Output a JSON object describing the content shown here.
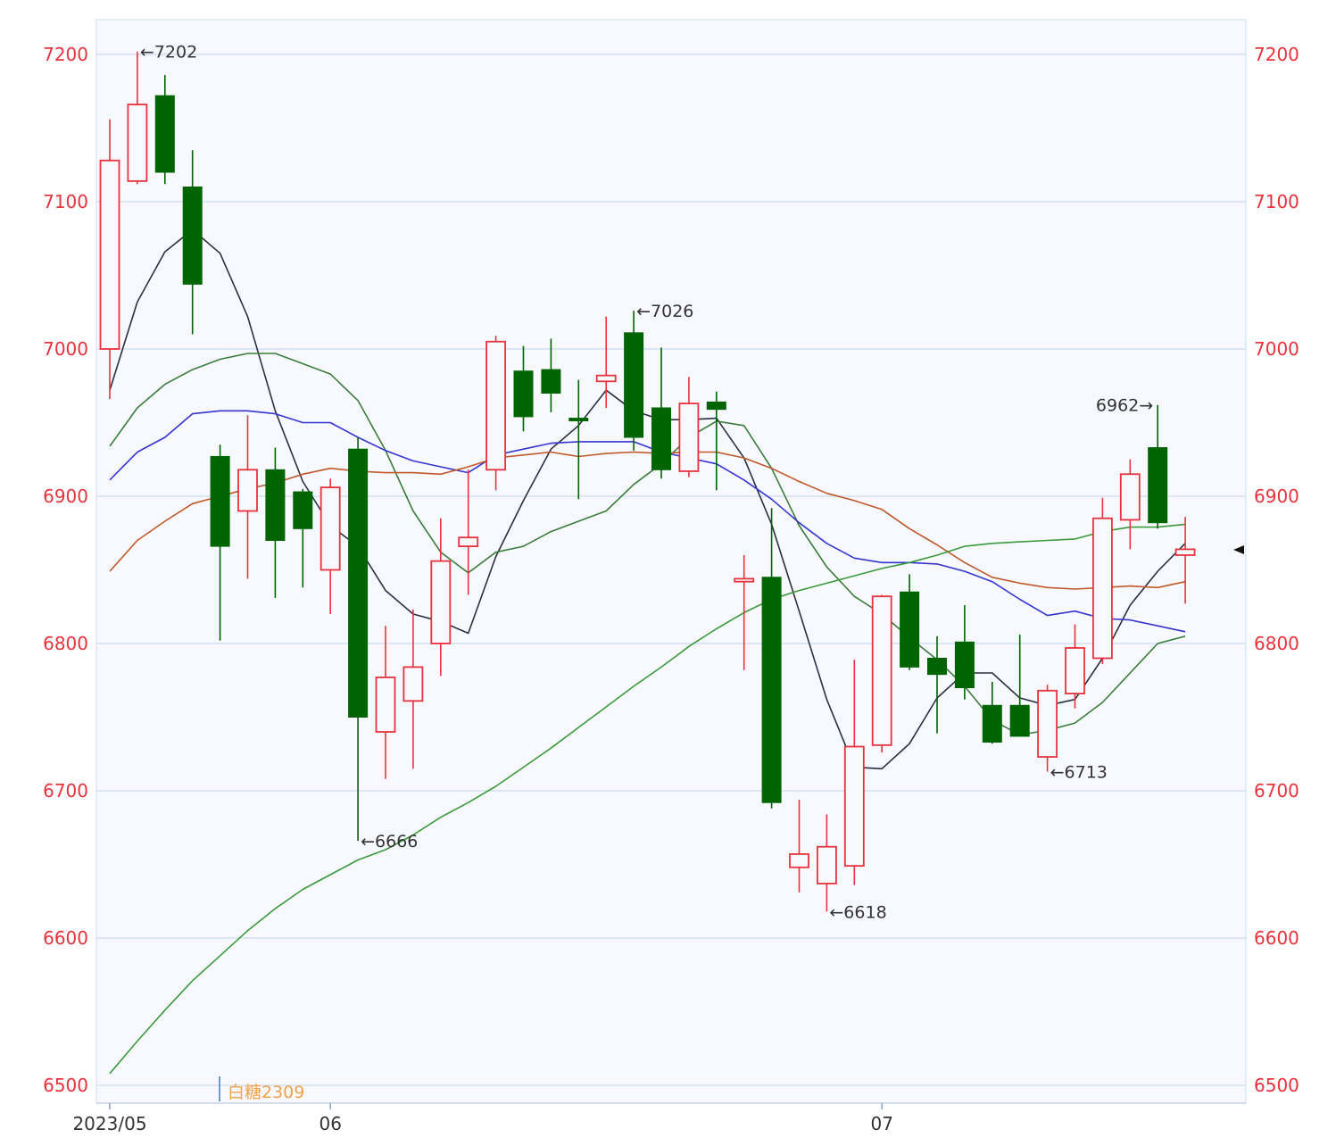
{
  "chart_data": {
    "type": "candlestick",
    "symbol_label": "白糖2309",
    "x_ticks": [
      "2023/05",
      "06",
      "07"
    ],
    "ylim": [
      6500,
      7200
    ],
    "y_ticks": [
      6500,
      6600,
      6700,
      6800,
      6900,
      7000,
      7100,
      7200
    ],
    "grid": true,
    "colors": {
      "up": "#e8323c",
      "down": "#006400",
      "axis_text": "#e8323c",
      "grid": "#dde6f5",
      "background": "#f7f9ff",
      "label_text": "#333333",
      "symbol": "#f0a24a",
      "ma5": "#2a3042",
      "ma10": "#3a7d3a",
      "ma20": "#3535d0",
      "ma40": "#c0582a",
      "ma60": "#3a9a3a"
    },
    "candles": [
      {
        "o": 7000,
        "h": 7156,
        "l": 6966,
        "c": 7128
      },
      {
        "o": 7114,
        "h": 7202,
        "l": 7112,
        "c": 7166
      },
      {
        "o": 7172,
        "h": 7186,
        "l": 7112,
        "c": 7120
      },
      {
        "o": 7110,
        "h": 7135,
        "l": 7010,
        "c": 7044
      },
      {
        "o": 6927,
        "h": 6935,
        "l": 6802,
        "c": 6866
      },
      {
        "o": 6890,
        "h": 6955,
        "l": 6844,
        "c": 6918
      },
      {
        "o": 6918,
        "h": 6933,
        "l": 6831,
        "c": 6870
      },
      {
        "o": 6903,
        "h": 6905,
        "l": 6838,
        "c": 6878
      },
      {
        "o": 6850,
        "h": 6912,
        "l": 6820,
        "c": 6906
      },
      {
        "o": 6932,
        "h": 6940,
        "l": 6666,
        "c": 6750
      },
      {
        "o": 6740,
        "h": 6812,
        "l": 6708,
        "c": 6777
      },
      {
        "o": 6761,
        "h": 6823,
        "l": 6715,
        "c": 6784
      },
      {
        "o": 6800,
        "h": 6885,
        "l": 6778,
        "c": 6856
      },
      {
        "o": 6866,
        "h": 6918,
        "l": 6833,
        "c": 6872
      },
      {
        "o": 6918,
        "h": 7009,
        "l": 6904,
        "c": 7005
      },
      {
        "o": 6985,
        "h": 7002,
        "l": 6944,
        "c": 6954
      },
      {
        "o": 6986,
        "h": 7007,
        "l": 6957,
        "c": 6970
      },
      {
        "o": 6953,
        "h": 6979,
        "l": 6898,
        "c": 6952
      },
      {
        "o": 6978,
        "h": 7022,
        "l": 6960,
        "c": 6982
      },
      {
        "o": 7011,
        "h": 7026,
        "l": 6931,
        "c": 6940
      },
      {
        "o": 6960,
        "h": 7001,
        "l": 6912,
        "c": 6918
      },
      {
        "o": 6917,
        "h": 6981,
        "l": 6913,
        "c": 6963
      },
      {
        "o": 6964,
        "h": 6971,
        "l": 6904,
        "c": 6959
      },
      {
        "o": 6842,
        "h": 6860,
        "l": 6782,
        "c": 6844
      },
      {
        "o": 6845,
        "h": 6892,
        "l": 6688,
        "c": 6692
      },
      {
        "o": 6648,
        "h": 6694,
        "l": 6631,
        "c": 6657
      },
      {
        "o": 6637,
        "h": 6684,
        "l": 6618,
        "c": 6662
      },
      {
        "o": 6649,
        "h": 6789,
        "l": 6636,
        "c": 6730
      },
      {
        "o": 6731,
        "h": 6833,
        "l": 6726,
        "c": 6832
      },
      {
        "o": 6835,
        "h": 6847,
        "l": 6782,
        "c": 6784
      },
      {
        "o": 6790,
        "h": 6805,
        "l": 6739,
        "c": 6779
      },
      {
        "o": 6801,
        "h": 6826,
        "l": 6762,
        "c": 6770
      },
      {
        "o": 6758,
        "h": 6774,
        "l": 6732,
        "c": 6733
      },
      {
        "o": 6758,
        "h": 6806,
        "l": 6737,
        "c": 6737
      },
      {
        "o": 6723,
        "h": 6772,
        "l": 6713,
        "c": 6768
      },
      {
        "o": 6766,
        "h": 6813,
        "l": 6756,
        "c": 6797
      },
      {
        "o": 6790,
        "h": 6899,
        "l": 6786,
        "c": 6885
      },
      {
        "o": 6884,
        "h": 6925,
        "l": 6864,
        "c": 6915
      },
      {
        "o": 6933,
        "h": 6962,
        "l": 6878,
        "c": 6882
      },
      {
        "o": 6860,
        "h": 6886,
        "l": 6827,
        "c": 6864
      }
    ],
    "ma_lines": [
      {
        "key": "ma5",
        "values": [
          6972,
          7032,
          7066,
          7081,
          7065,
          7022,
          6958,
          6910,
          6880,
          6866,
          6836,
          6820,
          6815,
          6807,
          6859,
          6897,
          6932,
          6948,
          6972,
          6958,
          6952,
          6952,
          6953,
          6926,
          6881,
          6822,
          6762,
          6716,
          6715,
          6732,
          6763,
          6780,
          6780,
          6763,
          6758,
          6762,
          6790,
          6826,
          6849,
          6868
        ]
      },
      {
        "key": "ma10",
        "values": [
          6934,
          6960,
          6976,
          6986,
          6993,
          6997,
          6997,
          6990,
          6983,
          6965,
          6931,
          6890,
          6862,
          6848,
          6862,
          6866,
          6876,
          6883,
          6890,
          6908,
          6922,
          6940,
          6951,
          6948,
          6919,
          6880,
          6852,
          6832,
          6820,
          6804,
          6789,
          6771,
          6748,
          6738,
          6741,
          6746,
          6760,
          6780,
          6800,
          6805
        ]
      },
      {
        "key": "ma20",
        "values": [
          6911,
          6930,
          6940,
          6956,
          6958,
          6958,
          6956,
          6950,
          6950,
          6940,
          6931,
          6924,
          6920,
          6916,
          6928,
          6932,
          6936,
          6937,
          6937,
          6937,
          6930,
          6926,
          6922,
          6911,
          6898,
          6882,
          6868,
          6858,
          6855,
          6855,
          6854,
          6849,
          6842,
          6830,
          6819,
          6822,
          6817,
          6816,
          6812,
          6808
        ]
      },
      {
        "key": "ma40",
        "values": [
          6849,
          6870,
          6883,
          6895,
          6900,
          6905,
          6909,
          6915,
          6919,
          6917,
          6916,
          6916,
          6915,
          6920,
          6926,
          6928,
          6930,
          6927,
          6929,
          6930,
          6929,
          6930,
          6930,
          6926,
          6919,
          6910,
          6902,
          6897,
          6891,
          6878,
          6867,
          6855,
          6845,
          6841,
          6838,
          6837,
          6838,
          6839,
          6838,
          6842
        ]
      },
      {
        "key": "ma60",
        "values": [
          6508,
          6530,
          6551,
          6571,
          6588,
          6605,
          6620,
          6633,
          6643,
          6653,
          6660,
          6670,
          6682,
          6692,
          6703,
          6716,
          6729,
          6743,
          6757,
          6771,
          6784,
          6798,
          6810,
          6821,
          6830,
          6836,
          6841,
          6846,
          6851,
          6855,
          6860,
          6866,
          6868,
          6869,
          6870,
          6871,
          6876,
          6879,
          6879,
          6881
        ]
      }
    ],
    "annotations": [
      {
        "candle": 1,
        "text": "←7202"
      },
      {
        "candle": 9,
        "text": "←6666"
      },
      {
        "candle": 19,
        "text": "←7026"
      },
      {
        "candle": 26,
        "text": "←6618"
      },
      {
        "candle": 34,
        "text": "←6713"
      },
      {
        "candle": 38,
        "text": "6962→"
      }
    ]
  }
}
